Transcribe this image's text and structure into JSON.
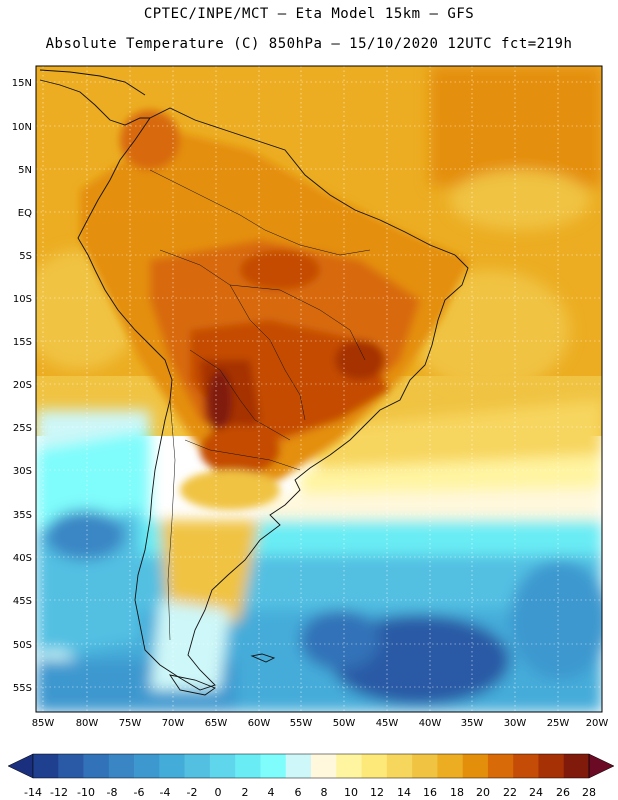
{
  "header": {
    "line1": "CPTEC/INPE/MCT –  Eta Model 15km – GFS",
    "line2": "Absolute Temperature (C) 850hPa – 15/10/2020 12UTC fct=219h"
  },
  "axes": {
    "lat_labels": [
      "15N",
      "10N",
      "5N",
      "EQ",
      "5S",
      "10S",
      "15S",
      "20S",
      "25S",
      "30S",
      "35S",
      "40S",
      "45S",
      "50S",
      "55S"
    ],
    "lon_labels": [
      "85W",
      "80W",
      "75W",
      "70W",
      "65W",
      "60W",
      "55W",
      "50W",
      "45W",
      "40W",
      "35W",
      "30W",
      "25W",
      "20W"
    ]
  },
  "colorbar": {
    "labels": [
      "-14",
      "-12",
      "-10",
      "-8",
      "-6",
      "-4",
      "-2",
      "0",
      "2",
      "4",
      "6",
      "8",
      "10",
      "12",
      "14",
      "16",
      "18",
      "20",
      "22",
      "24",
      "26",
      "28"
    ],
    "colors": [
      "#1f3f8f",
      "#2a5aa5",
      "#3172b8",
      "#3a86c5",
      "#3d98cf",
      "#44acd9",
      "#53c0e2",
      "#5fd6ec",
      "#69ecf4",
      "#7ffcfc",
      "#cdf7f8",
      "#fff8dc",
      "#fff4a0",
      "#fde87a",
      "#f7d65e",
      "#f0c342",
      "#ecad22",
      "#e48f0c",
      "#d86a08",
      "#c44c06",
      "#a63105",
      "#801a0b",
      "#6b0a24"
    ],
    "left_arrow_color": "#1a2f7e",
    "right_arrow_color": "#6b0a24"
  }
}
